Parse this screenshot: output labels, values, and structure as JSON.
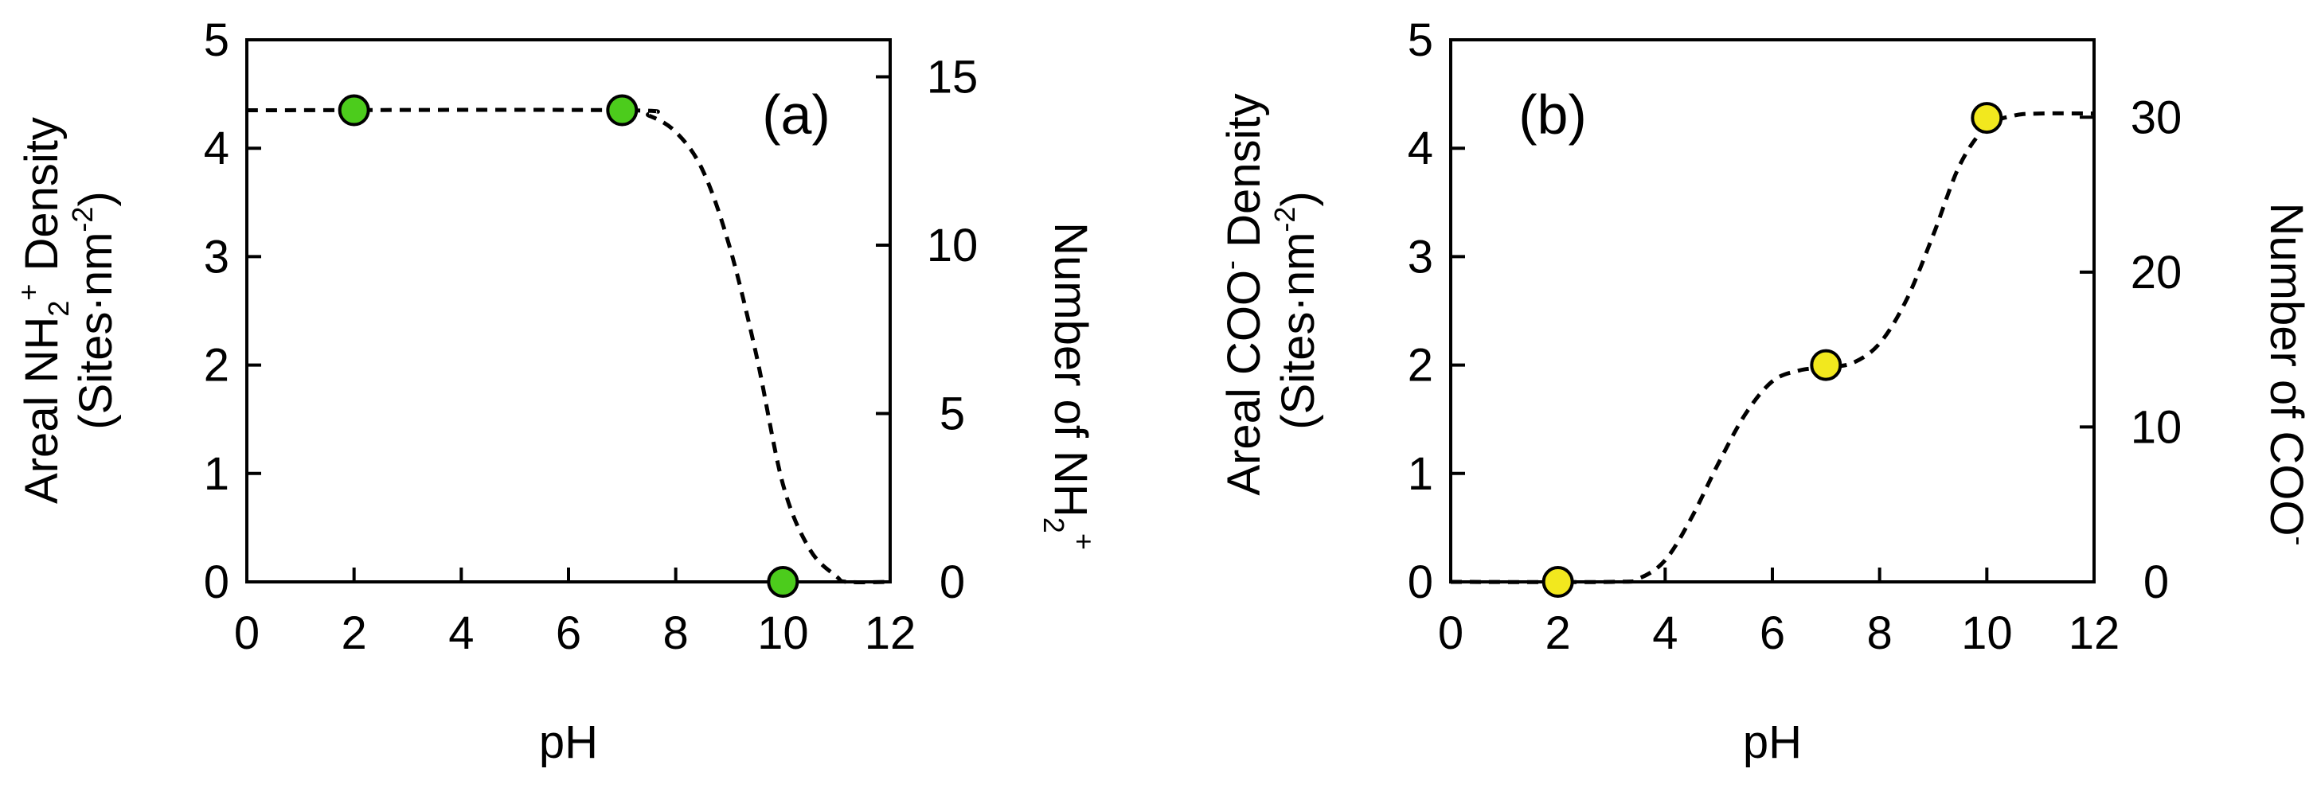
{
  "chart_data": [
    {
      "type": "scatter",
      "panel_label": "(a)",
      "xlabel": "pH",
      "ylabel_line1": {
        "prefix": "Areal NH",
        "sub": "2",
        "sup": "+",
        "suffix": " Density"
      },
      "ylabel_line2": {
        "prefix": "(Sites·nm",
        "sup": "-2",
        "suffix": ")"
      },
      "y2label": {
        "prefix": "Number of NH",
        "sub": "2",
        "sup": "+"
      },
      "xlim": [
        0,
        12
      ],
      "ylim": [
        0,
        5
      ],
      "y2lim": [
        0,
        16.1
      ],
      "xticks": [
        "0",
        "2",
        "4",
        "6",
        "8",
        "10",
        "12"
      ],
      "yticks": [
        "0",
        "1",
        "2",
        "3",
        "4",
        "5"
      ],
      "y2ticks": [
        "0",
        "5",
        "10",
        "15"
      ],
      "marker_color": "#4ccc1c",
      "points": [
        {
          "x": 2,
          "y": 4.35
        },
        {
          "x": 7,
          "y": 4.35
        },
        {
          "x": 10,
          "y": 0
        }
      ],
      "fit_curve": {
        "name": "dashed fit",
        "x": [
          0,
          7,
          7.5,
          8,
          8.5,
          9,
          9.5,
          10,
          10.5,
          11,
          11.2,
          12
        ],
        "y": [
          4.35,
          4.35,
          4.3,
          4.15,
          3.8,
          3.1,
          2.1,
          0.9,
          0.3,
          0.05,
          0,
          0
        ]
      }
    },
    {
      "type": "scatter",
      "panel_label": "(b)",
      "xlabel": "pH",
      "ylabel_line1": {
        "prefix": "Areal COO",
        "sup": "-",
        "suffix": " Density"
      },
      "ylabel_line2": {
        "prefix": "(Sites·nm",
        "sup": "-2",
        "suffix": ")"
      },
      "y2label": {
        "prefix": "Number of COO",
        "sup": "-"
      },
      "xlim": [
        0,
        12
      ],
      "ylim": [
        0,
        5
      ],
      "y2lim": [
        0,
        35
      ],
      "xticks": [
        "0",
        "2",
        "4",
        "6",
        "8",
        "10",
        "12"
      ],
      "yticks": [
        "0",
        "1",
        "2",
        "3",
        "4",
        "5"
      ],
      "y2ticks": [
        "0",
        "10",
        "20",
        "30"
      ],
      "marker_color": "#f2e81e",
      "points": [
        {
          "x": 2,
          "y": 0
        },
        {
          "x": 7,
          "y": 2.0
        },
        {
          "x": 10,
          "y": 4.28
        }
      ],
      "fit_curve": {
        "name": "dashed fit",
        "x": [
          0,
          3,
          3.5,
          4,
          4.5,
          5,
          5.5,
          6,
          6.5,
          7,
          7.5,
          8,
          8.5,
          9,
          9.5,
          10,
          10.5,
          11,
          12
        ],
        "y": [
          0,
          0,
          0.03,
          0.2,
          0.6,
          1.1,
          1.55,
          1.85,
          1.95,
          1.98,
          2.02,
          2.2,
          2.6,
          3.2,
          3.85,
          4.2,
          4.3,
          4.32,
          4.32
        ]
      }
    }
  ]
}
